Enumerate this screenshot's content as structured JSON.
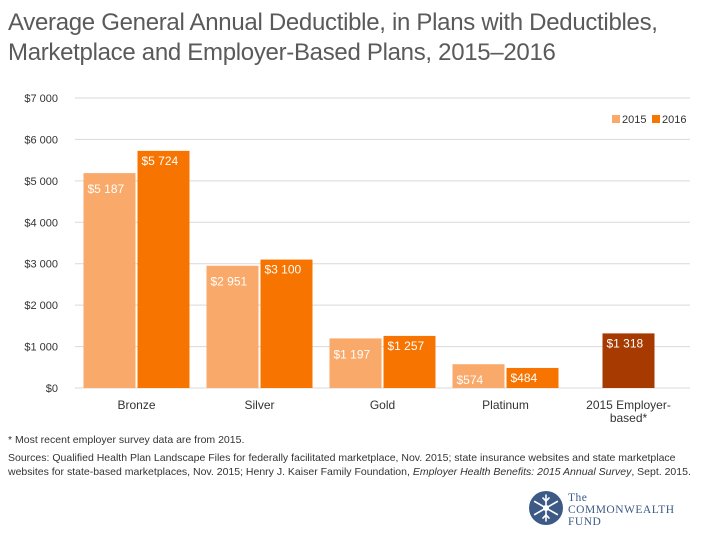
{
  "title": {
    "line1": "Average General Annual Deductible, in Plans with Deductibles,",
    "line2": "Marketplace and Employer-Based Plans, 2015–2016"
  },
  "footnote": "* Most recent employer survey data are from 2015.",
  "sources": {
    "part1": "Sources: Qualified Health Plan Landscape Files for federally facilitated marketplace, Nov. 2015; state insurance websites and state marketplace websites for state-based marketplaces, Nov. 2015; Henry J. Kaiser Family Foundation, ",
    "italic": "Employer Health Benefits: 2015 Annual Survey",
    "part2": ", Sept. 2015."
  },
  "logo": {
    "line1": "The",
    "line2": "COMMONWEALTH",
    "line3": "FUND"
  },
  "colors": {
    "s2015": "#f9a96a",
    "s2016": "#f77400",
    "employer": "#a63a00",
    "grid": "#d9d9d9",
    "axis_text": "#333333",
    "logo": "#3d5a86"
  },
  "chart_data": {
    "type": "bar",
    "categories": [
      "Bronze",
      "Silver",
      "Gold",
      "Platinum",
      "2015 Employer-based*"
    ],
    "category_label_lines": [
      [
        "Bronze"
      ],
      [
        "Silver"
      ],
      [
        "Gold"
      ],
      [
        "Platinum"
      ],
      [
        "2015 Employer-",
        "based*"
      ]
    ],
    "series": [
      {
        "name": "2015",
        "values": [
          5187,
          2951,
          1197,
          574,
          null
        ],
        "labels": [
          "$5 187",
          "$2 951",
          "$1 197",
          "$574",
          ""
        ]
      },
      {
        "name": "2016",
        "values": [
          5724,
          3100,
          1257,
          484,
          null
        ],
        "labels": [
          "$5 724",
          "$3 100",
          "$1 257",
          "$484",
          ""
        ]
      }
    ],
    "employer": {
      "value": 1318,
      "label": "$1 318"
    },
    "ylim": [
      0,
      7000
    ],
    "yticks": [
      0,
      1000,
      2000,
      3000,
      4000,
      5000,
      6000,
      7000
    ],
    "ytick_labels": [
      "$0",
      "$1 000",
      "$2 000",
      "$3 000",
      "$4 000",
      "$5 000",
      "$6 000",
      "$7 000"
    ],
    "legend": {
      "position": "top-right",
      "entries": [
        "2015",
        "2016"
      ]
    },
    "grid": true
  }
}
